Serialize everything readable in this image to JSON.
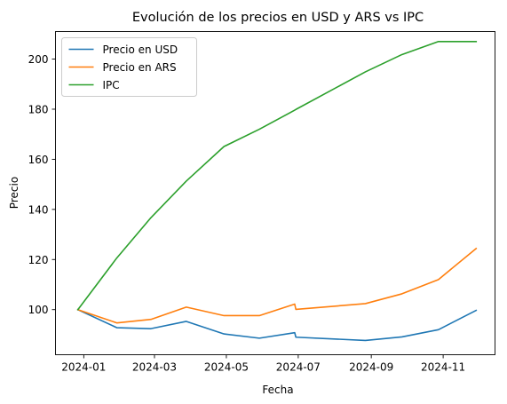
{
  "chart_data": {
    "type": "line",
    "title": "Evolución de los precios en USD y ARS vs IPC",
    "xlabel": "Fecha",
    "ylabel": "Precio",
    "x_ticks": [
      "2024-01",
      "2024-03",
      "2024-05",
      "2024-07",
      "2024-09",
      "2024-11"
    ],
    "y_ticks": [
      100,
      120,
      140,
      160,
      180,
      200
    ],
    "xlim": [
      "2023-12-08",
      "2024-12-15"
    ],
    "ylim": [
      82,
      211
    ],
    "grid": false,
    "legend_position": "top-left",
    "series": [
      {
        "name": "Precio en USD",
        "color": "#1f77b4",
        "x": [
          "2023-12-27",
          "2024-01-29",
          "2024-02-27",
          "2024-03-28",
          "2024-04-29",
          "2024-05-29",
          "2024-06-28",
          "2024-06-29",
          "2024-08-27",
          "2024-09-27",
          "2024-10-28",
          "2024-11-29"
        ],
        "y": [
          100,
          92.8,
          92.4,
          95.3,
          90.3,
          88.6,
          90.8,
          89.0,
          87.7,
          89.1,
          92.0,
          99.7
        ]
      },
      {
        "name": "Precio en ARS",
        "color": "#ff7f0e",
        "x": [
          "2023-12-27",
          "2024-01-29",
          "2024-02-27",
          "2024-03-28",
          "2024-04-29",
          "2024-05-29",
          "2024-06-28",
          "2024-06-29",
          "2024-08-27",
          "2024-09-27",
          "2024-10-28",
          "2024-11-29"
        ],
        "y": [
          100,
          94.7,
          96.1,
          101.0,
          97.6,
          97.6,
          102.2,
          100.1,
          102.4,
          106.3,
          112.0,
          124.4
        ]
      },
      {
        "name": "IPC",
        "color": "#2ca02c",
        "x": [
          "2023-12-27",
          "2024-01-29",
          "2024-02-27",
          "2024-03-28",
          "2024-04-29",
          "2024-05-29",
          "2024-06-28",
          "2024-06-29",
          "2024-08-27",
          "2024-09-27",
          "2024-10-28",
          "2024-11-29"
        ],
        "y": [
          100,
          120.6,
          136.7,
          151.3,
          165.1,
          172.0,
          179.6,
          179.9,
          194.9,
          201.8,
          207.0,
          207.0
        ]
      }
    ]
  }
}
